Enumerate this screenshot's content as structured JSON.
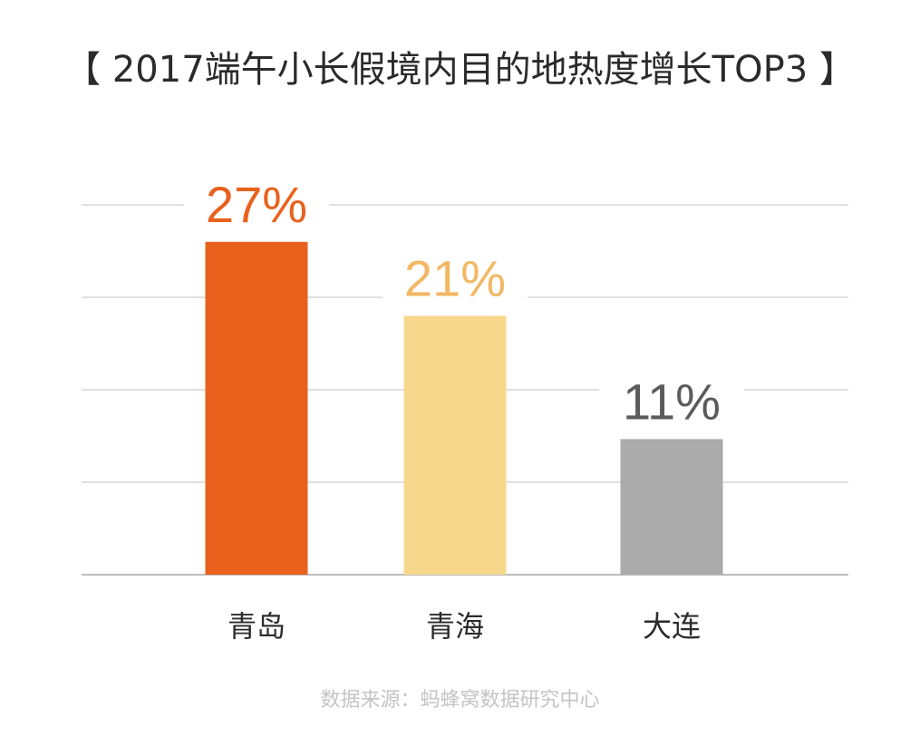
{
  "chart_data": {
    "type": "bar",
    "title": "【 2017端午小长假境内目的地热度增长TOP3 】",
    "categories": [
      "青岛",
      "青海",
      "大连"
    ],
    "values": [
      27,
      21,
      11
    ],
    "value_labels": [
      "27%",
      "21%",
      "11%"
    ],
    "bar_colors": [
      "#E8621E",
      "#F6D78C",
      "#ABABAB"
    ],
    "label_colors": [
      "#E8621E",
      "#F2B864",
      "#5B5B5B"
    ],
    "ylim": [
      0,
      30
    ],
    "unit": "%",
    "grid": true,
    "legend": "none"
  },
  "source": "数据来源：蚂蜂窝数据研究中心"
}
